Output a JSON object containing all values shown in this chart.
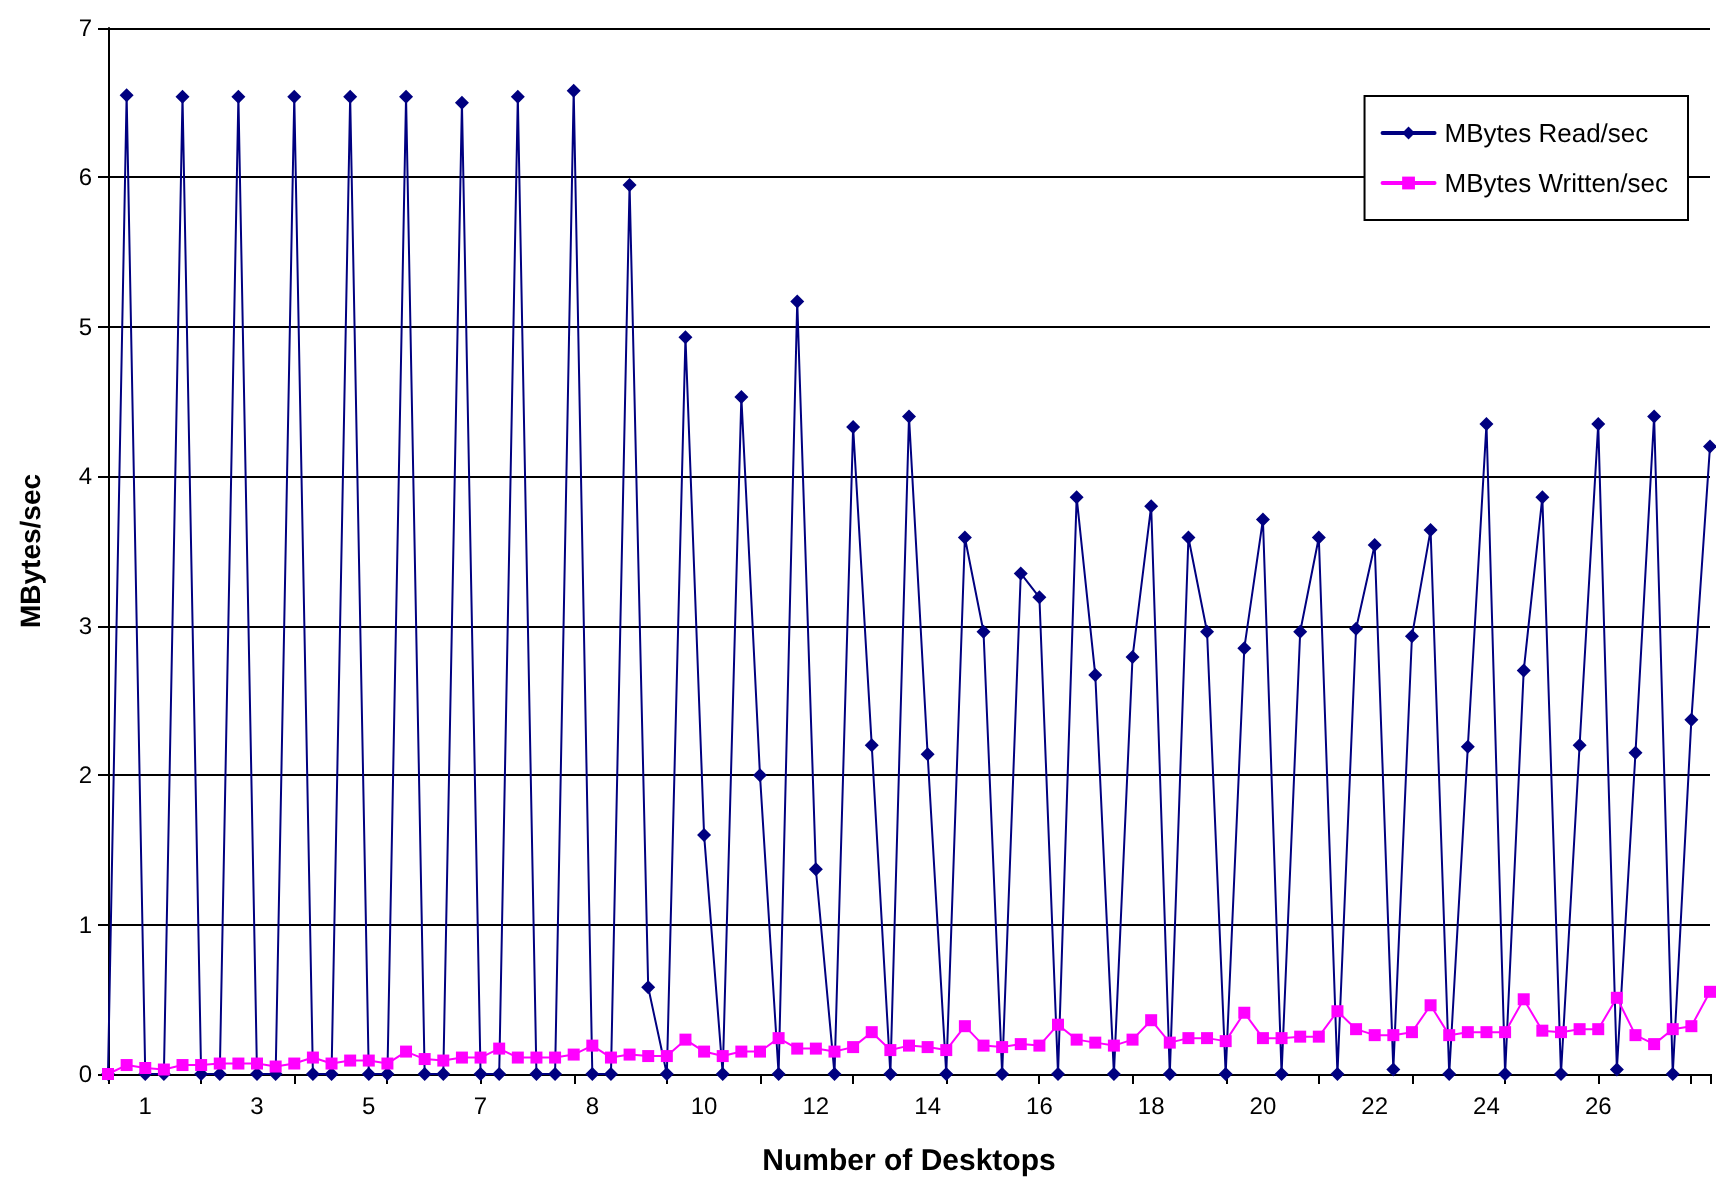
{
  "chart_data": {
    "type": "line",
    "xlabel": "Number of Desktops",
    "ylabel": "MBytes/sec",
    "categories": [
      null,
      null,
      "1",
      null,
      null,
      null,
      null,
      null,
      "3",
      null,
      null,
      null,
      null,
      null,
      "5",
      null,
      null,
      null,
      null,
      null,
      "7",
      null,
      null,
      null,
      null,
      null,
      "8",
      null,
      null,
      null,
      null,
      null,
      "10",
      null,
      null,
      null,
      null,
      null,
      "12",
      null,
      null,
      null,
      null,
      null,
      "14",
      null,
      null,
      null,
      null,
      null,
      "16",
      null,
      null,
      null,
      null,
      null,
      "18",
      null,
      null,
      null,
      null,
      null,
      "20",
      null,
      null,
      null,
      null,
      null,
      "22",
      null,
      null,
      null,
      null,
      null,
      "24",
      null,
      null,
      null,
      null,
      null,
      "26",
      null,
      null,
      null,
      null,
      null,
      null
    ],
    "series": [
      {
        "name": "MBytes Read/sec",
        "color": "#000080",
        "marker": "diamond",
        "values": [
          0,
          6.55,
          0,
          0,
          6.54,
          0,
          0,
          6.54,
          0,
          0,
          6.54,
          0,
          0,
          6.54,
          0,
          0,
          6.54,
          0,
          0,
          6.5,
          0,
          0,
          6.54,
          0,
          0,
          6.58,
          0,
          0,
          5.95,
          0.58,
          0,
          4.93,
          1.6,
          0,
          4.53,
          2.0,
          0,
          5.17,
          1.37,
          0,
          4.33,
          2.2,
          0,
          4.4,
          2.14,
          0,
          3.59,
          2.96,
          0,
          3.35,
          3.19,
          0,
          3.86,
          2.67,
          0,
          2.79,
          3.8,
          0,
          3.59,
          2.96,
          0,
          2.85,
          3.71,
          0,
          2.96,
          3.59,
          0,
          2.98,
          3.54,
          0.03,
          2.93,
          3.64,
          0,
          2.19,
          4.35,
          0,
          2.7,
          3.86,
          0,
          2.2,
          4.35,
          0.03,
          2.15,
          4.4,
          0,
          2.37,
          4.2
        ]
      },
      {
        "name": "MBytes Written/sec",
        "color": "#ff00ff",
        "marker": "square",
        "values": [
          0,
          0.06,
          0.04,
          0.03,
          0.06,
          0.06,
          0.07,
          0.07,
          0.07,
          0.05,
          0.07,
          0.11,
          0.07,
          0.09,
          0.09,
          0.07,
          0.15,
          0.1,
          0.09,
          0.11,
          0.11,
          0.17,
          0.11,
          0.11,
          0.11,
          0.13,
          0.19,
          0.11,
          0.13,
          0.12,
          0.12,
          0.23,
          0.15,
          0.12,
          0.15,
          0.15,
          0.24,
          0.17,
          0.17,
          0.15,
          0.18,
          0.28,
          0.16,
          0.19,
          0.18,
          0.16,
          0.32,
          0.19,
          0.18,
          0.2,
          0.19,
          0.33,
          0.23,
          0.21,
          0.19,
          0.23,
          0.36,
          0.21,
          0.24,
          0.24,
          0.22,
          0.41,
          0.24,
          0.24,
          0.25,
          0.25,
          0.42,
          0.3,
          0.26,
          0.26,
          0.28,
          0.46,
          0.26,
          0.28,
          0.28,
          0.28,
          0.5,
          0.29,
          0.28,
          0.3,
          0.3,
          0.51,
          0.26,
          0.2,
          0.3,
          0.32,
          0.55
        ]
      }
    ],
    "ylim": [
      0,
      7
    ],
    "yticks": [
      0,
      1,
      2,
      3,
      4,
      5,
      6,
      7
    ],
    "grid": "y",
    "legend": "top right",
    "line_style": "solid"
  }
}
